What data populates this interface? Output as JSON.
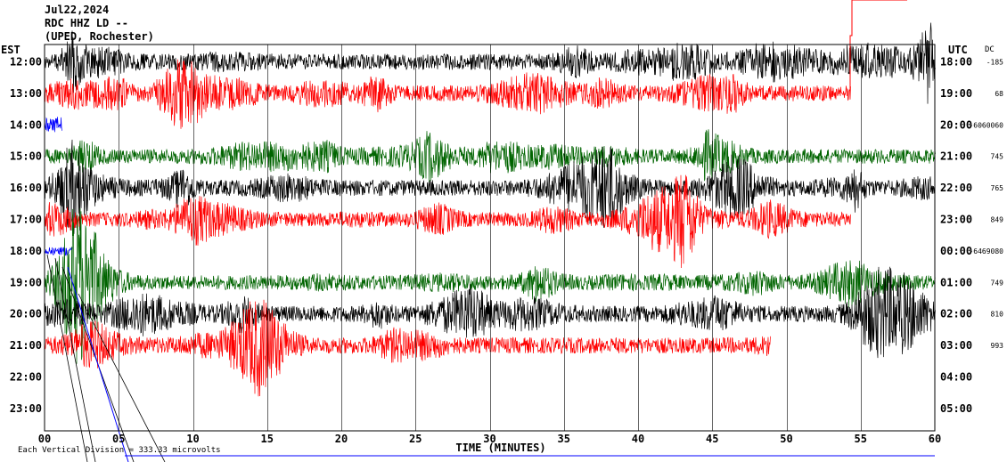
{
  "header": {
    "date": "Jul22,2024",
    "station": "RDC HHZ LD --",
    "network": "(UPED, Rochester)"
  },
  "labels": {
    "left_zone": "EST",
    "right_zone": "UTC",
    "dc_header": "DC",
    "x_title": "TIME (MINUTES)",
    "scale_note": "Each Vertical Division = 333.33 microvolts"
  },
  "colors": {
    "black": "#000000",
    "red": "#ff0000",
    "blue": "#0000ff",
    "green": "#006400",
    "grid": "#000000"
  },
  "chart_data": {
    "type": "line",
    "xlim": [
      0,
      60
    ],
    "x_ticks": [
      0,
      5,
      10,
      15,
      20,
      25,
      30,
      35,
      40,
      45,
      50,
      55,
      60
    ],
    "x_tick_labels": [
      "00",
      "05",
      "10",
      "15",
      "20",
      "25",
      "30",
      "35",
      "40",
      "45",
      "50",
      "55",
      "60"
    ],
    "rows": [
      {
        "est": "12:00",
        "utc": "18:00",
        "dc": "-185",
        "color": "black",
        "end_min": 60,
        "amp": 1.0
      },
      {
        "est": "13:00",
        "utc": "19:00",
        "dc": "68",
        "color": "red",
        "end_min": 54.3,
        "amp": 1.0
      },
      {
        "est": "14:00",
        "utc": "20:00",
        "dc": "-6060060",
        "color": "blue",
        "end_min": 1.2,
        "amp": 0.4
      },
      {
        "est": "15:00",
        "utc": "21:00",
        "dc": "745",
        "color": "green",
        "end_min": 60,
        "amp": 0.9
      },
      {
        "est": "16:00",
        "utc": "22:00",
        "dc": "765",
        "color": "black",
        "end_min": 60,
        "amp": 1.0
      },
      {
        "est": "17:00",
        "utc": "23:00",
        "dc": "849",
        "color": "red",
        "end_min": 54.3,
        "amp": 0.9
      },
      {
        "est": "18:00",
        "utc": "00:00",
        "dc": "-6469080",
        "color": "blue",
        "end_min": 1.9,
        "amp": 0.5
      },
      {
        "est": "19:00",
        "utc": "01:00",
        "dc": "749",
        "color": "green",
        "end_min": 60,
        "amp": 0.9
      },
      {
        "est": "20:00",
        "utc": "02:00",
        "dc": "810",
        "color": "black",
        "end_min": 60,
        "amp": 1.0
      },
      {
        "est": "21:00",
        "utc": "03:00",
        "dc": "993",
        "color": "red",
        "end_min": 48.9,
        "amp": 1.0
      },
      {
        "est": "22:00",
        "utc": "04:00",
        "dc": "",
        "color": "none",
        "end_min": 0,
        "amp": 0
      },
      {
        "est": "23:00",
        "utc": "05:00",
        "dc": "",
        "color": "none",
        "end_min": 0,
        "amp": 0
      }
    ]
  }
}
